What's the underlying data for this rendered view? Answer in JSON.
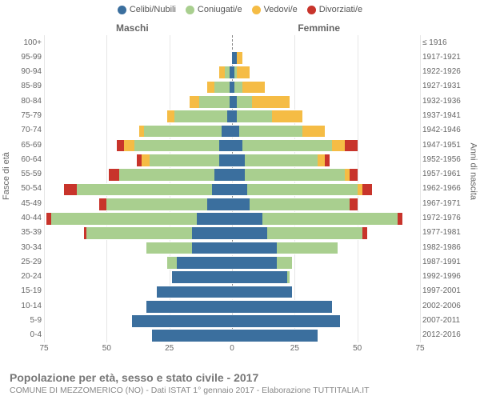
{
  "chart": {
    "type": "population-pyramid",
    "title": "Popolazione per età, sesso e stato civile - 2017",
    "subtitle": "COMUNE DI MEZZOMERICO (NO) - Dati ISTAT 1° gennaio 2017 - Elaborazione TUTTITALIA.IT",
    "gender_left_label": "Maschi",
    "gender_right_label": "Femmine",
    "y_left_title": "Fasce di età",
    "y_right_title": "Anni di nascita",
    "xmax": 75,
    "xtick_step": 25,
    "xticks_left": [
      75,
      50,
      25
    ],
    "xticks_right": [
      25,
      50,
      75
    ],
    "background_color": "#ffffff",
    "grid_color": "#e6e6e6",
    "center_line_color": "#888888",
    "label_fontsize": 10,
    "title_fontsize": 14,
    "legend": [
      {
        "key": "celibi",
        "label": "Celibi/Nubili",
        "color": "#3b6f9e"
      },
      {
        "key": "coniugati",
        "label": "Coniugati/e",
        "color": "#a9cf8f"
      },
      {
        "key": "vedovi",
        "label": "Vedovi/e",
        "color": "#f5bc45"
      },
      {
        "key": "divorziati",
        "label": "Divorziati/e",
        "color": "#c8342b"
      }
    ],
    "age_groups": [
      {
        "age": "100+",
        "birth": "≤ 1916",
        "m": {
          "celibi": 0,
          "coniugati": 0,
          "vedovi": 0,
          "divorziati": 0
        },
        "f": {
          "celibi": 0,
          "coniugati": 0,
          "vedovi": 0,
          "divorziati": 0
        }
      },
      {
        "age": "95-99",
        "birth": "1917-1921",
        "m": {
          "celibi": 0,
          "coniugati": 0,
          "vedovi": 0,
          "divorziati": 0
        },
        "f": {
          "celibi": 2,
          "coniugati": 0,
          "vedovi": 2,
          "divorziati": 0
        }
      },
      {
        "age": "90-94",
        "birth": "1922-1926",
        "m": {
          "celibi": 1,
          "coniugati": 2,
          "vedovi": 2,
          "divorziati": 0
        },
        "f": {
          "celibi": 1,
          "coniugati": 1,
          "vedovi": 5,
          "divorziati": 0
        }
      },
      {
        "age": "85-89",
        "birth": "1927-1931",
        "m": {
          "celibi": 1,
          "coniugati": 6,
          "vedovi": 3,
          "divorziati": 0
        },
        "f": {
          "celibi": 1,
          "coniugati": 3,
          "vedovi": 9,
          "divorziati": 0
        }
      },
      {
        "age": "80-84",
        "birth": "1932-1936",
        "m": {
          "celibi": 1,
          "coniugati": 12,
          "vedovi": 4,
          "divorziati": 0
        },
        "f": {
          "celibi": 2,
          "coniugati": 6,
          "vedovi": 15,
          "divorziati": 0
        }
      },
      {
        "age": "75-79",
        "birth": "1937-1941",
        "m": {
          "celibi": 2,
          "coniugati": 21,
          "vedovi": 3,
          "divorziati": 0
        },
        "f": {
          "celibi": 2,
          "coniugati": 14,
          "vedovi": 12,
          "divorziati": 0
        }
      },
      {
        "age": "70-74",
        "birth": "1942-1946",
        "m": {
          "celibi": 4,
          "coniugati": 31,
          "vedovi": 2,
          "divorziati": 0
        },
        "f": {
          "celibi": 3,
          "coniugati": 25,
          "vedovi": 9,
          "divorziati": 0
        }
      },
      {
        "age": "65-69",
        "birth": "1947-1951",
        "m": {
          "celibi": 5,
          "coniugati": 34,
          "vedovi": 4,
          "divorziati": 3
        },
        "f": {
          "celibi": 4,
          "coniugati": 36,
          "vedovi": 5,
          "divorziati": 5
        }
      },
      {
        "age": "60-64",
        "birth": "1952-1956",
        "m": {
          "celibi": 5,
          "coniugati": 28,
          "vedovi": 3,
          "divorziati": 2
        },
        "f": {
          "celibi": 5,
          "coniugati": 29,
          "vedovi": 3,
          "divorziati": 2
        }
      },
      {
        "age": "55-59",
        "birth": "1957-1961",
        "m": {
          "celibi": 7,
          "coniugati": 38,
          "vedovi": 0,
          "divorziati": 4
        },
        "f": {
          "celibi": 5,
          "coniugati": 40,
          "vedovi": 2,
          "divorziati": 3
        }
      },
      {
        "age": "50-54",
        "birth": "1962-1966",
        "m": {
          "celibi": 8,
          "coniugati": 54,
          "vedovi": 0,
          "divorziati": 5
        },
        "f": {
          "celibi": 6,
          "coniugati": 44,
          "vedovi": 2,
          "divorziati": 4
        }
      },
      {
        "age": "45-49",
        "birth": "1967-1971",
        "m": {
          "celibi": 10,
          "coniugati": 40,
          "vedovi": 0,
          "divorziati": 3
        },
        "f": {
          "celibi": 7,
          "coniugati": 40,
          "vedovi": 0,
          "divorziati": 3
        }
      },
      {
        "age": "40-44",
        "birth": "1972-1976",
        "m": {
          "celibi": 14,
          "coniugati": 58,
          "vedovi": 0,
          "divorziati": 2
        },
        "f": {
          "celibi": 12,
          "coniugati": 54,
          "vedovi": 0,
          "divorziati": 2
        }
      },
      {
        "age": "35-39",
        "birth": "1977-1981",
        "m": {
          "celibi": 16,
          "coniugati": 42,
          "vedovi": 0,
          "divorziati": 1
        },
        "f": {
          "celibi": 14,
          "coniugati": 38,
          "vedovi": 0,
          "divorziati": 2
        }
      },
      {
        "age": "30-34",
        "birth": "1982-1986",
        "m": {
          "celibi": 16,
          "coniugati": 18,
          "vedovi": 0,
          "divorziati": 0
        },
        "f": {
          "celibi": 18,
          "coniugati": 24,
          "vedovi": 0,
          "divorziati": 0
        }
      },
      {
        "age": "25-29",
        "birth": "1987-1991",
        "m": {
          "celibi": 22,
          "coniugati": 4,
          "vedovi": 0,
          "divorziati": 0
        },
        "f": {
          "celibi": 18,
          "coniugati": 6,
          "vedovi": 0,
          "divorziati": 0
        }
      },
      {
        "age": "20-24",
        "birth": "1992-1996",
        "m": {
          "celibi": 24,
          "coniugati": 0,
          "vedovi": 0,
          "divorziati": 0
        },
        "f": {
          "celibi": 22,
          "coniugati": 1,
          "vedovi": 0,
          "divorziati": 0
        }
      },
      {
        "age": "15-19",
        "birth": "1997-2001",
        "m": {
          "celibi": 30,
          "coniugati": 0,
          "vedovi": 0,
          "divorziati": 0
        },
        "f": {
          "celibi": 24,
          "coniugati": 0,
          "vedovi": 0,
          "divorziati": 0
        }
      },
      {
        "age": "10-14",
        "birth": "2002-2006",
        "m": {
          "celibi": 34,
          "coniugati": 0,
          "vedovi": 0,
          "divorziati": 0
        },
        "f": {
          "celibi": 40,
          "coniugati": 0,
          "vedovi": 0,
          "divorziati": 0
        }
      },
      {
        "age": "5-9",
        "birth": "2007-2011",
        "m": {
          "celibi": 40,
          "coniugati": 0,
          "vedovi": 0,
          "divorziati": 0
        },
        "f": {
          "celibi": 43,
          "coniugati": 0,
          "vedovi": 0,
          "divorziati": 0
        }
      },
      {
        "age": "0-4",
        "birth": "2012-2016",
        "m": {
          "celibi": 32,
          "coniugati": 0,
          "vedovi": 0,
          "divorziati": 0
        },
        "f": {
          "celibi": 34,
          "coniugati": 0,
          "vedovi": 0,
          "divorziati": 0
        }
      }
    ]
  }
}
